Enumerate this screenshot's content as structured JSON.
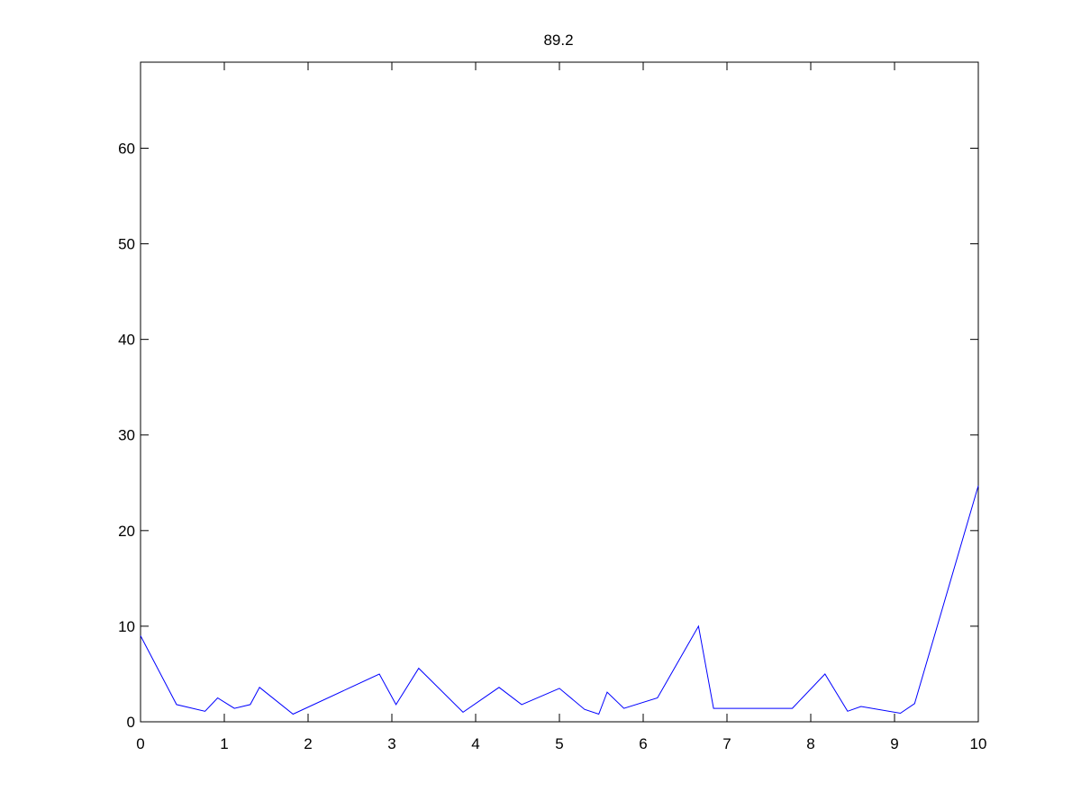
{
  "chart_data": {
    "type": "line",
    "title": "89.2",
    "xlabel": "",
    "ylabel": "",
    "xlim": [
      0,
      10
    ],
    "ylim": [
      0,
      69
    ],
    "xticks": [
      0,
      1,
      2,
      3,
      4,
      5,
      6,
      7,
      8,
      9,
      10
    ],
    "yticks": [
      0,
      10,
      20,
      30,
      40,
      50,
      60
    ],
    "grid": false,
    "line_color": "#0000ff",
    "series": [
      {
        "x": [
          0,
          0.43,
          0.77,
          0.92,
          1.12,
          1.31,
          1.42,
          1.82,
          2.85,
          3.05,
          3.32,
          3.85,
          4.28,
          4.55,
          5.0,
          5.3,
          5.47,
          5.57,
          5.77,
          6.17,
          6.66,
          6.84,
          7.78,
          8.17,
          8.44,
          8.6,
          9.07,
          9.24,
          10.0
        ],
        "y": [
          9.0,
          1.8,
          1.1,
          2.5,
          1.4,
          1.8,
          3.6,
          0.8,
          5.0,
          1.8,
          5.6,
          1.0,
          3.6,
          1.8,
          3.5,
          1.3,
          0.8,
          3.1,
          1.4,
          2.5,
          10.0,
          1.4,
          1.4,
          5.0,
          1.1,
          1.6,
          0.9,
          1.9,
          24.7
        ]
      }
    ]
  }
}
